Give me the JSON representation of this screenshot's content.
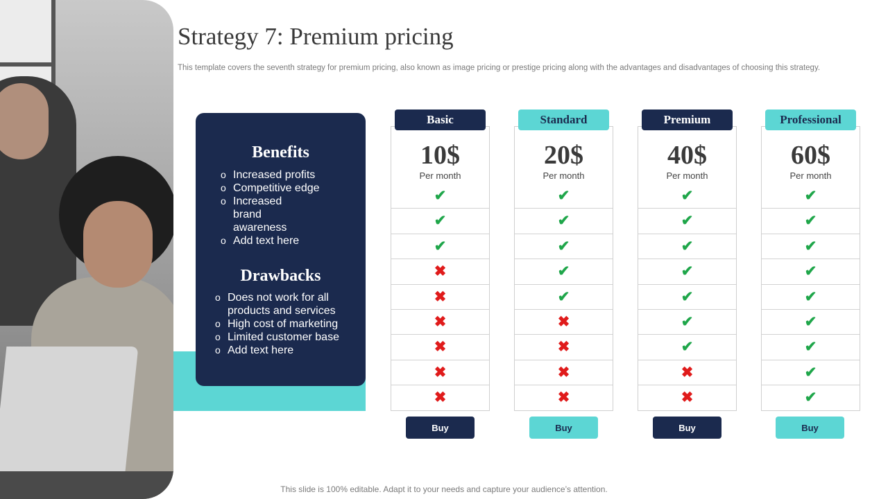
{
  "slide": {
    "title": "Strategy 7: Premium pricing",
    "subtitle": "This template covers the seventh strategy for premium pricing, also known as image pricing or prestige pricing along with the advantages and disadvantages of choosing this strategy.",
    "footer": "This slide is 100% editable. Adapt it to your needs and capture your audience’s attention."
  },
  "panel": {
    "benefits_heading": "Benefits",
    "benefits": [
      "Increased profits",
      "Competitive edge",
      "Increased brand awareness",
      "Add text here"
    ],
    "drawbacks_heading": "Drawbacks",
    "drawbacks": [
      "Does not work for all products and services",
      "High cost of marketing",
      "Limited customer base",
      "Add text here"
    ]
  },
  "colors": {
    "navy": "#1b2a4e",
    "teal": "#5cd6d4",
    "check": "#1fa64a",
    "cross": "#e01b1b"
  },
  "icons": {
    "yes": "checkmark-icon",
    "no": "cross-icon"
  },
  "plans": [
    {
      "name": "Basic",
      "price": "10$",
      "period": "Per month",
      "buy": "Buy",
      "style": "dark",
      "features": [
        true,
        true,
        true,
        false,
        false,
        false,
        false,
        false,
        false
      ]
    },
    {
      "name": "Standard",
      "price": "20$",
      "period": "Per month",
      "buy": "Buy",
      "style": "teal",
      "features": [
        true,
        true,
        true,
        true,
        true,
        false,
        false,
        false,
        false
      ]
    },
    {
      "name": "Premium",
      "price": "40$",
      "period": "Per month",
      "buy": "Buy",
      "style": "dark",
      "features": [
        true,
        true,
        true,
        true,
        true,
        true,
        true,
        false,
        false
      ]
    },
    {
      "name": "Professional",
      "price": "60$",
      "period": "Per month",
      "buy": "Buy",
      "style": "teal",
      "features": [
        true,
        true,
        true,
        true,
        true,
        true,
        true,
        true,
        true
      ]
    }
  ]
}
